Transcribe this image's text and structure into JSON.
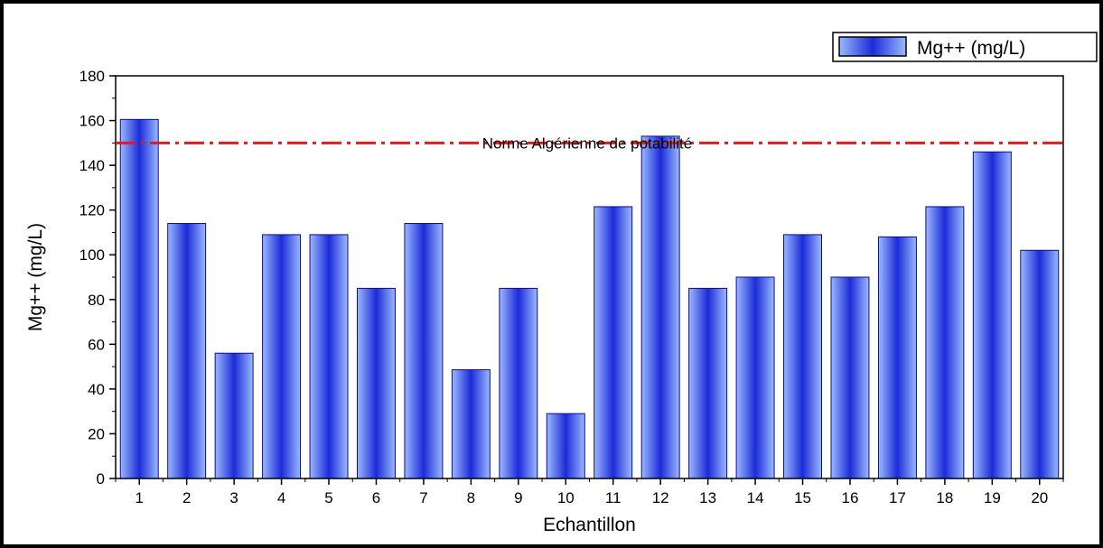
{
  "chart_data": {
    "type": "bar",
    "categories": [
      "1",
      "2",
      "3",
      "4",
      "5",
      "6",
      "7",
      "8",
      "9",
      "10",
      "11",
      "12",
      "13",
      "14",
      "15",
      "16",
      "17",
      "18",
      "19",
      "20"
    ],
    "series": [
      {
        "name": "Mg++ (mg/L)",
        "values": [
          160.5,
          114,
          56,
          109,
          109,
          85,
          114,
          48.6,
          85,
          29,
          121.5,
          153,
          85,
          90,
          109,
          90,
          108,
          121.5,
          146,
          102
        ]
      }
    ],
    "xlabel": "Echantillon",
    "ylabel": "Mg++ (mg/L)",
    "ylim": [
      0,
      180
    ],
    "yticks": [
      0,
      20,
      40,
      60,
      80,
      100,
      120,
      140,
      160,
      180
    ],
    "reference_line": {
      "value": 150,
      "label": "Norme Algérienne de potabilité",
      "color": "#e31a1c"
    },
    "legend_position": "top-right",
    "grid": false,
    "bar_color": "#1c2bd8",
    "bar_highlight": "#9ab9ff"
  }
}
